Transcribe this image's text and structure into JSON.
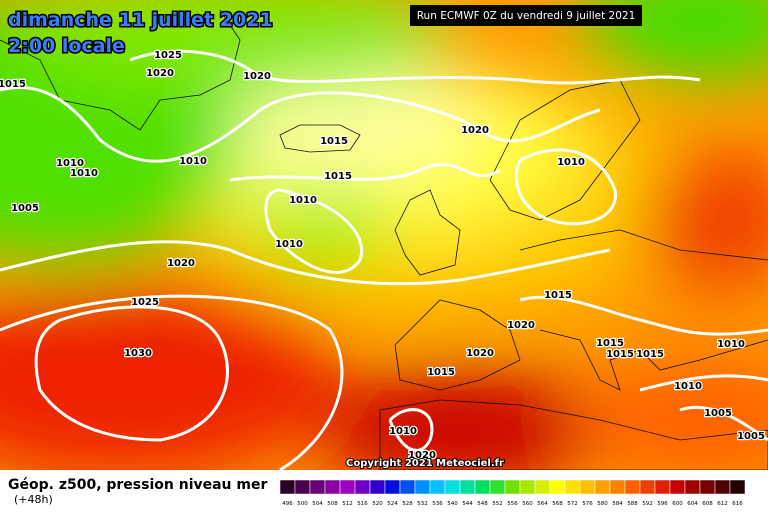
{
  "header": {
    "title": "dimanche 11 juillet 2021",
    "subtitle": "2:00 locale",
    "run": "Run ECMWF 0Z du vendredi 9 juillet 2021"
  },
  "isobars": [
    1025,
    1020,
    1015,
    1020,
    1020,
    1015,
    1010,
    1010,
    1010,
    1010,
    1015,
    1005,
    1010,
    1010,
    1020,
    1025,
    1015,
    1020,
    1030,
    1020,
    1015,
    1015,
    1015,
    1010,
    1015,
    1010,
    1005,
    1010,
    1005,
    1020
  ],
  "copyright": "Copyright 2021 Meteociel.fr",
  "footer": {
    "title": "Géop. z500, pression niveau mer",
    "lead": "(+48h)"
  },
  "legend": {
    "labels": [
      496,
      500,
      504,
      508,
      512,
      516,
      520,
      524,
      528,
      532,
      536,
      540,
      544,
      548,
      552,
      556,
      560,
      564,
      568,
      572,
      576,
      580,
      584,
      588,
      592,
      596,
      600,
      604,
      608,
      612,
      616
    ],
    "colors": [
      "#2a0026",
      "#4a0050",
      "#6a0078",
      "#8a00a0",
      "#a000c0",
      "#7000c8",
      "#3000d0",
      "#0010e0",
      "#0050f0",
      "#0090ff",
      "#00c0ff",
      "#00e0e0",
      "#00e0a0",
      "#00e060",
      "#30e030",
      "#70e000",
      "#a8e800",
      "#d8f000",
      "#ffff00",
      "#ffe000",
      "#ffc000",
      "#ffa000",
      "#ff8000",
      "#ff6000",
      "#f04000",
      "#e02000",
      "#c80000",
      "#a00000",
      "#780000",
      "#500000",
      "#200000"
    ]
  }
}
